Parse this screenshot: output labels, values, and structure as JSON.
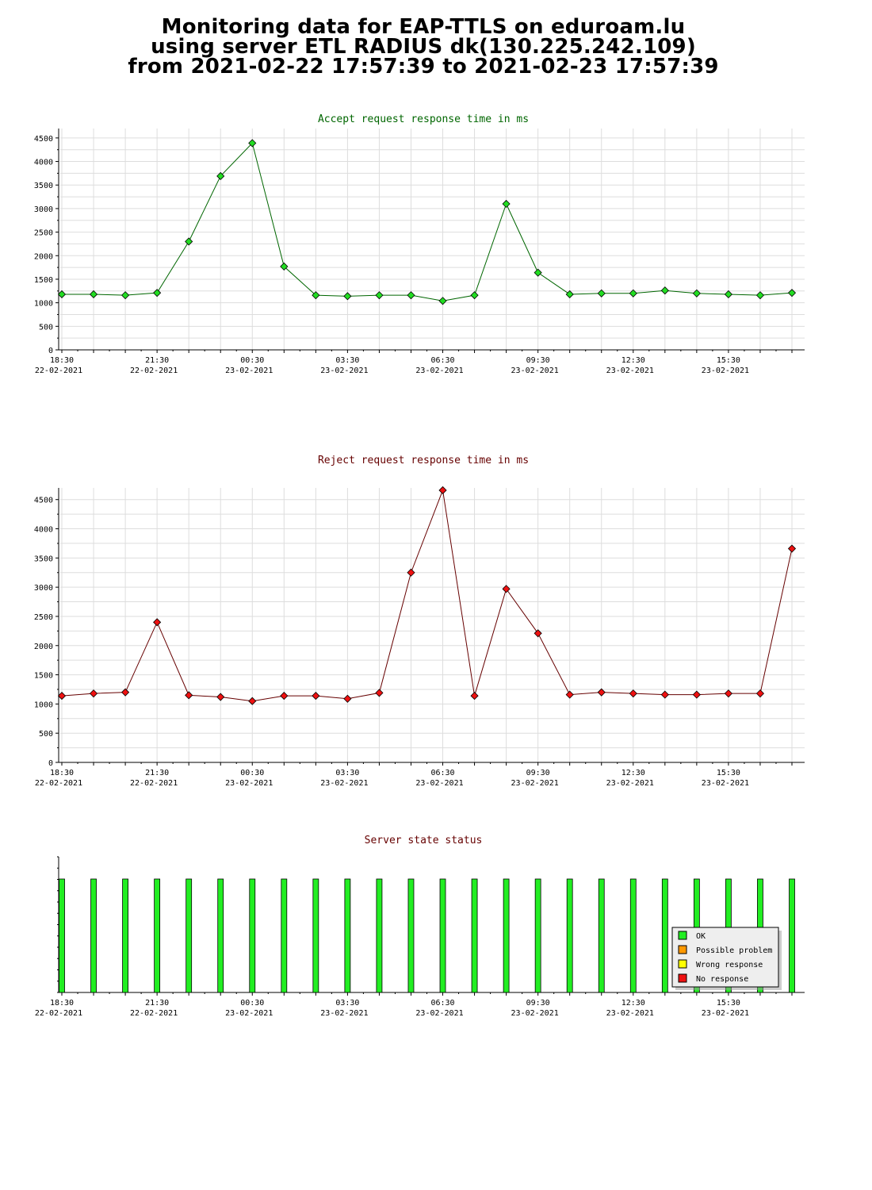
{
  "page_title": {
    "line1": "Monitoring data for EAP-TTLS on eduroam.lu",
    "line2": "using server ETL RADIUS dk(130.225.242.109)",
    "line3": "from 2021-02-22 17:57:39 to 2021-02-23 17:57:39"
  },
  "chart_data": [
    {
      "type": "line",
      "title": "Accept request response time in ms",
      "title_color": "#006600",
      "marker_color": "#22dd22",
      "line_color": "#006600",
      "ylim": [
        0,
        4700
      ],
      "yticks": [
        0,
        500,
        1000,
        1500,
        2000,
        2500,
        3000,
        3500,
        4000,
        4500
      ],
      "x": [
        "18:30",
        "19:30",
        "20:30",
        "21:30",
        "22:30",
        "23:30",
        "00:30",
        "01:30",
        "02:30",
        "03:30",
        "04:30",
        "05:30",
        "06:30",
        "07:30",
        "08:30",
        "09:30",
        "10:30",
        "11:30",
        "12:30",
        "13:30",
        "14:30",
        "15:30",
        "16:30",
        "17:30"
      ],
      "x_tick_labels": [
        {
          "time": "18:30",
          "date": "22-02-2021"
        },
        {
          "time": "21:30",
          "date": "22-02-2021"
        },
        {
          "time": "00:30",
          "date": "23-02-2021"
        },
        {
          "time": "03:30",
          "date": "23-02-2021"
        },
        {
          "time": "06:30",
          "date": "23-02-2021"
        },
        {
          "time": "09:30",
          "date": "23-02-2021"
        },
        {
          "time": "12:30",
          "date": "23-02-2021"
        },
        {
          "time": "15:30",
          "date": "23-02-2021"
        }
      ],
      "values": [
        1180,
        1180,
        1160,
        1210,
        2300,
        3690,
        4390,
        1770,
        1160,
        1140,
        1160,
        1160,
        1040,
        1160,
        3100,
        1640,
        1180,
        1200,
        1200,
        1260,
        1200,
        1180,
        1160,
        1210
      ],
      "grid": true
    },
    {
      "type": "line",
      "title": "Reject request response time in ms",
      "title_color": "#660000",
      "marker_color": "#ee1111",
      "line_color": "#660000",
      "ylim": [
        0,
        4700
      ],
      "yticks": [
        0,
        500,
        1000,
        1500,
        2000,
        2500,
        3000,
        3500,
        4000,
        4500
      ],
      "x": [
        "18:30",
        "19:30",
        "20:30",
        "21:30",
        "22:30",
        "23:30",
        "00:30",
        "01:30",
        "02:30",
        "03:30",
        "04:30",
        "05:30",
        "06:30",
        "07:30",
        "08:30",
        "09:30",
        "10:30",
        "11:30",
        "12:30",
        "13:30",
        "14:30",
        "15:30",
        "16:30",
        "17:30"
      ],
      "x_tick_labels": [
        {
          "time": "18:30",
          "date": "22-02-2021"
        },
        {
          "time": "21:30",
          "date": "22-02-2021"
        },
        {
          "time": "00:30",
          "date": "23-02-2021"
        },
        {
          "time": "03:30",
          "date": "23-02-2021"
        },
        {
          "time": "06:30",
          "date": "23-02-2021"
        },
        {
          "time": "09:30",
          "date": "23-02-2021"
        },
        {
          "time": "12:30",
          "date": "23-02-2021"
        },
        {
          "time": "15:30",
          "date": "23-02-2021"
        }
      ],
      "values": [
        1140,
        1180,
        1200,
        2400,
        1150,
        1120,
        1050,
        1140,
        1140,
        1090,
        1190,
        3250,
        4660,
        1140,
        2970,
        2210,
        1160,
        1200,
        1180,
        1160,
        1160,
        1180,
        1180,
        3660
      ],
      "grid": true
    },
    {
      "type": "bar",
      "title": "Server state status",
      "title_color": "#660000",
      "x": [
        "18:30",
        "19:30",
        "20:30",
        "21:30",
        "22:30",
        "23:30",
        "00:30",
        "01:30",
        "02:30",
        "03:30",
        "04:30",
        "05:30",
        "06:30",
        "07:30",
        "08:30",
        "09:30",
        "10:30",
        "11:30",
        "12:30",
        "13:30",
        "14:30",
        "15:30",
        "16:30",
        "17:30"
      ],
      "x_tick_labels": [
        {
          "time": "18:30",
          "date": "22-02-2021"
        },
        {
          "time": "21:30",
          "date": "22-02-2021"
        },
        {
          "time": "00:30",
          "date": "23-02-2021"
        },
        {
          "time": "03:30",
          "date": "23-02-2021"
        },
        {
          "time": "06:30",
          "date": "23-02-2021"
        },
        {
          "time": "09:30",
          "date": "23-02-2021"
        },
        {
          "time": "12:30",
          "date": "23-02-2021"
        },
        {
          "time": "15:30",
          "date": "23-02-2021"
        }
      ],
      "states": [
        "OK",
        "OK",
        "OK",
        "OK",
        "OK",
        "OK",
        "OK",
        "OK",
        "OK",
        "OK",
        "OK",
        "OK",
        "OK",
        "OK",
        "OK",
        "OK",
        "OK",
        "OK",
        "OK",
        "OK",
        "OK",
        "OK",
        "OK",
        "OK"
      ],
      "legend": [
        {
          "label": "OK",
          "color": "#22ee22"
        },
        {
          "label": "Possible problem",
          "color": "#ff9900"
        },
        {
          "label": "Wrong response",
          "color": "#ffff00"
        },
        {
          "label": "No response",
          "color": "#ee1111"
        }
      ],
      "legend_position": "bottom-right"
    }
  ]
}
